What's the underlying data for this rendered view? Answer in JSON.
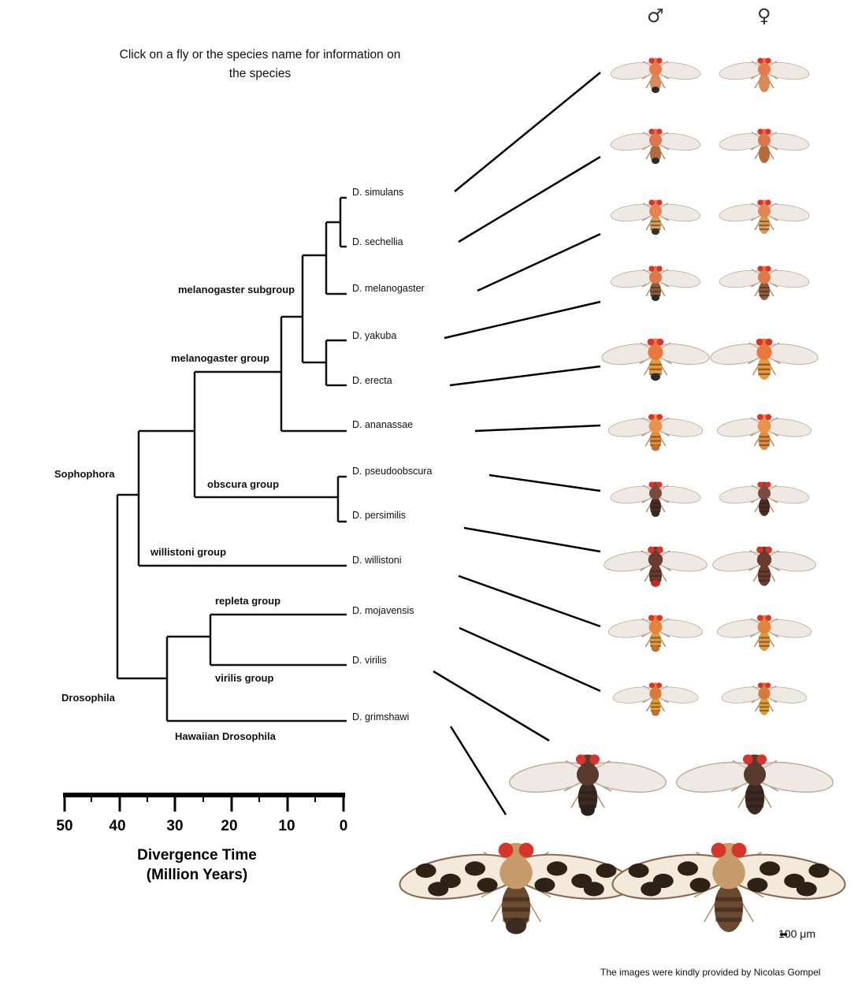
{
  "instruction": "Click on a fly or the species name for information on the species",
  "sex_symbols": {
    "male": "♂",
    "female": "♀"
  },
  "species": [
    {
      "name": "D. simulans",
      "body": "#e57b4a",
      "abd": "#d98a55",
      "tip": "#2a2a30"
    },
    {
      "name": "D. sechellia",
      "body": "#e0754a",
      "abd": "#b56a3e",
      "tip": "#2a2a30"
    },
    {
      "name": "D. melanogaster",
      "body": "#e58450",
      "abd": "#d99a55",
      "tip": "#3a3028"
    },
    {
      "name": "D. yakuba",
      "body": "#e0784a",
      "abd": "#8e5c3a",
      "tip": "#2a2a30"
    },
    {
      "name": "D. erecta",
      "body": "#e8783c",
      "abd": "#e89a40",
      "tip": "#2a2a30"
    },
    {
      "name": "D. ananassae",
      "body": "#e8924a",
      "abd": "#e28b3c",
      "tip": "#c07030"
    },
    {
      "name": "D. pseudoobscura",
      "body": "#7a4a3a",
      "abd": "#4a2e26",
      "tip": "#3a2620"
    },
    {
      "name": "D. persimilis",
      "body": "#6a3c30",
      "abd": "#6a3c30",
      "tip": "#c02a20"
    },
    {
      "name": "D. willistoni",
      "body": "#e4833a",
      "abd": "#e09a40",
      "tip": "#c07030"
    },
    {
      "name": "D. mojavensis",
      "body": "#d87a3a",
      "abd": "#e0a030",
      "tip": "#c07030"
    },
    {
      "name": "D. virilis",
      "body": "#5a3a2c",
      "abd": "#3a2a22",
      "tip": "#2a2020"
    },
    {
      "name": "D. grimshawi",
      "body": "#c79a6a",
      "abd": "#6a4a30",
      "tip": "#3a2a20"
    }
  ],
  "groups": {
    "melanogaster_subgroup": "melanogaster subgroup",
    "melanogaster_group": "melanogaster group",
    "sophophora": "Sophophora",
    "obscura_group": "obscura group",
    "willistoni_group": "willistoni group",
    "repleta_group": "repleta group",
    "virilis_group": "virilis group",
    "drosophila": "Drosophila",
    "hawaiian": "Hawaiian Drosophila"
  },
  "axis": {
    "ticks": [
      "50",
      "40",
      "30",
      "20",
      "10",
      "0"
    ],
    "title_line1": "Divergence Time",
    "title_line2": "(Million Years)"
  },
  "scale_note": "100 μm",
  "credit": "The images were kindly provided by Nicolas Gompel"
}
